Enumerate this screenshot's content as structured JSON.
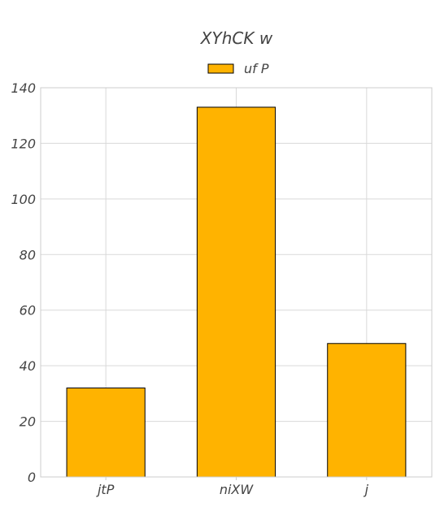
{
  "chart_data": {
    "type": "bar",
    "title": "XYhCK w",
    "categories": [
      "jtP",
      "niXW",
      "j"
    ],
    "series": [
      {
        "name": "uf P",
        "values": [
          32,
          133,
          48
        ]
      }
    ],
    "ylim": [
      0,
      140
    ],
    "yticks": [
      0,
      20,
      40,
      60,
      80,
      100,
      120,
      140
    ],
    "grid": true,
    "legend_position": "top-center",
    "colors": {
      "bar": "#ffb300",
      "bar_edge": "#000000",
      "grid": "#d9d9d9",
      "axis": "#cccccc",
      "text": "#444444"
    },
    "xlabel": "",
    "ylabel": ""
  }
}
